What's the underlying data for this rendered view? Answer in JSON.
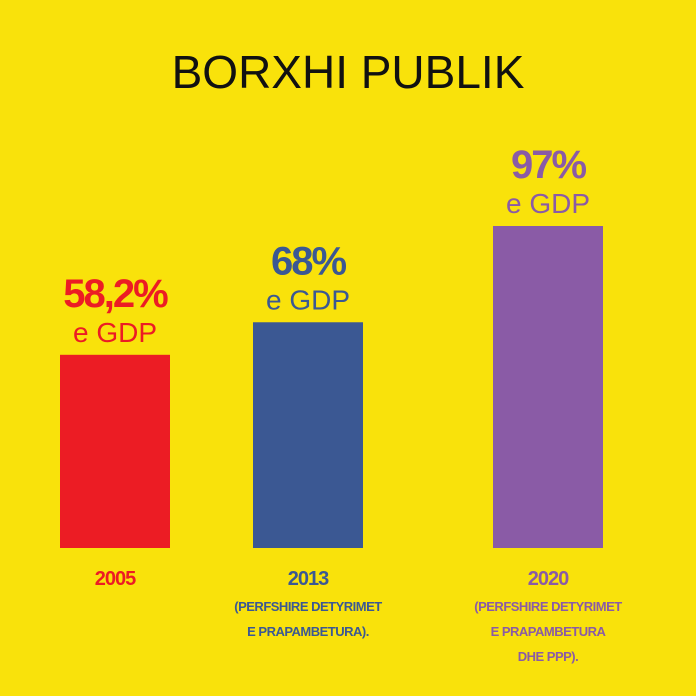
{
  "chart_data": {
    "type": "bar",
    "title": "BORXHI PUBLIK",
    "categories": [
      "2005",
      "2013",
      "2020"
    ],
    "values": [
      58.2,
      68,
      97
    ],
    "value_labels": [
      "58,2%",
      "68%",
      "97%"
    ],
    "value_sublabels": [
      "e GDP",
      "e GDP",
      "e GDP"
    ],
    "colors": [
      "#ec1c24",
      "#3b5893",
      "#8a5ba6"
    ],
    "category_notes": [
      [],
      [
        "(PERFSHIRE DETYRIMET",
        "E PRAPAMBETURA)."
      ],
      [
        "(PERFSHIRE DETYRIMET",
        "E PRAPAMBETURA",
        "DHE PPP)."
      ]
    ]
  }
}
